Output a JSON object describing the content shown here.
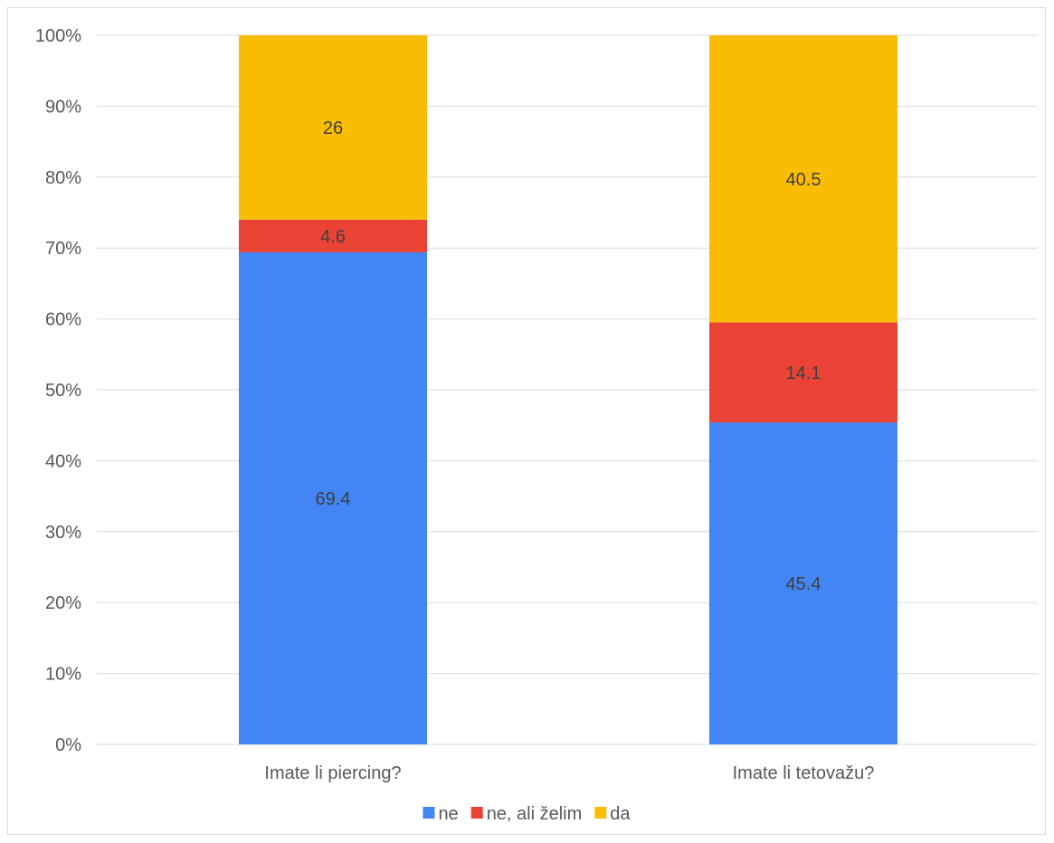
{
  "chart_data": {
    "type": "bar",
    "stacked": true,
    "percent_stacked": true,
    "categories": [
      "Imate li piercing?",
      "Imate li tetovažu?"
    ],
    "series": [
      {
        "name": "ne",
        "values": [
          69.4,
          45.4
        ],
        "color": "#4285f4"
      },
      {
        "name": "ne, ali želim",
        "values": [
          4.6,
          14.1
        ],
        "color": "#ea4335"
      },
      {
        "name": "da",
        "values": [
          26,
          40.5
        ],
        "color": "#fbbc04"
      }
    ],
    "y_ticks": [
      "0%",
      "10%",
      "20%",
      "30%",
      "40%",
      "50%",
      "60%",
      "70%",
      "80%",
      "90%",
      "100%"
    ],
    "ylim": [
      0,
      100
    ],
    "grid": true,
    "gridline_color": "#d9d9d9",
    "legend_position": "bottom"
  }
}
